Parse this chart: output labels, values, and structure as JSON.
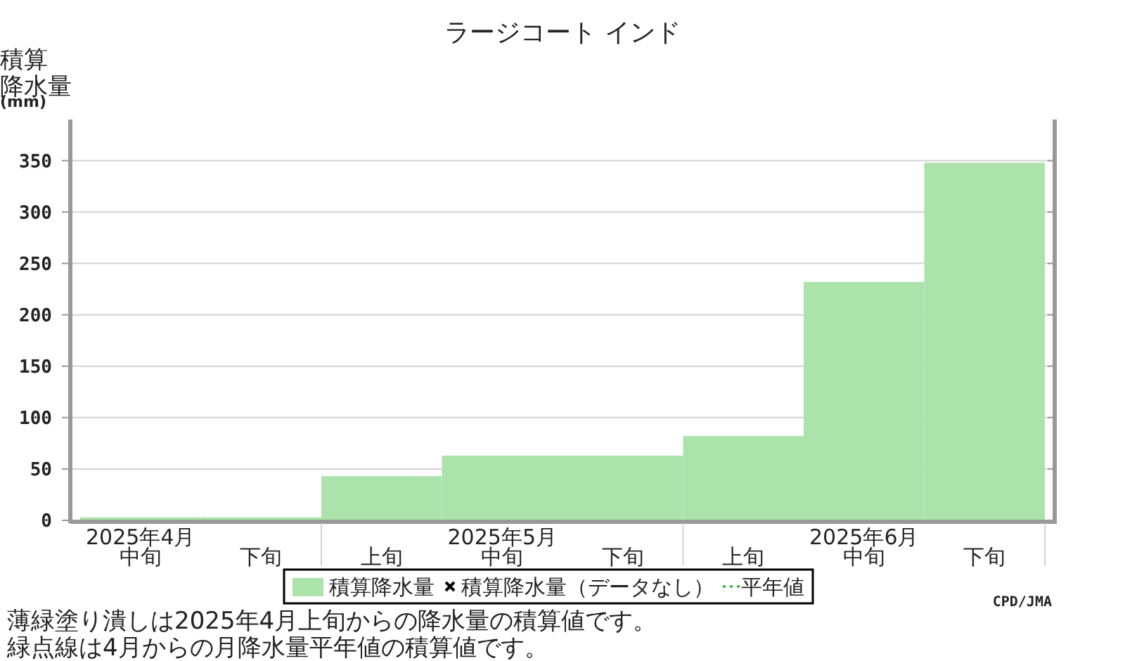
{
  "chart_data": {
    "type": "bar",
    "title": "ラージコート インド",
    "ylabel": "積算降水量(mm)",
    "categories": [
      "2025年4月中旬",
      "下旬",
      "上旬",
      "2025年5月中旬",
      "下旬",
      "上旬",
      "2025年6月中旬",
      "下旬"
    ],
    "series": [
      {
        "name": "積算降水量",
        "color": "#abe3ab",
        "values": [
          3,
          3,
          43,
          63,
          63,
          82,
          232,
          348
        ]
      },
      {
        "name": "積算降水量（データなし）",
        "type": "scatter",
        "marker": "cross",
        "color": "#000000",
        "values": [
          null,
          null,
          null,
          null,
          null,
          null,
          null,
          null
        ]
      },
      {
        "name": "平年値",
        "type": "line",
        "line_style": "dotted",
        "color": "#22aa22",
        "values": [
          null,
          null,
          null,
          null,
          null,
          null,
          null,
          null
        ]
      }
    ],
    "ylim": [
      0,
      390
    ],
    "yticks": [
      0,
      50,
      100,
      150,
      200,
      250,
      300,
      350
    ],
    "grid": "y",
    "legend": "bottom",
    "annotations": [
      "CPD/JMA",
      "薄緑塗り潰しは2025年4月上旬からの降水量の積算値です。",
      "緑点線は4月からの月降水量平年値の積算値です。"
    ]
  }
}
